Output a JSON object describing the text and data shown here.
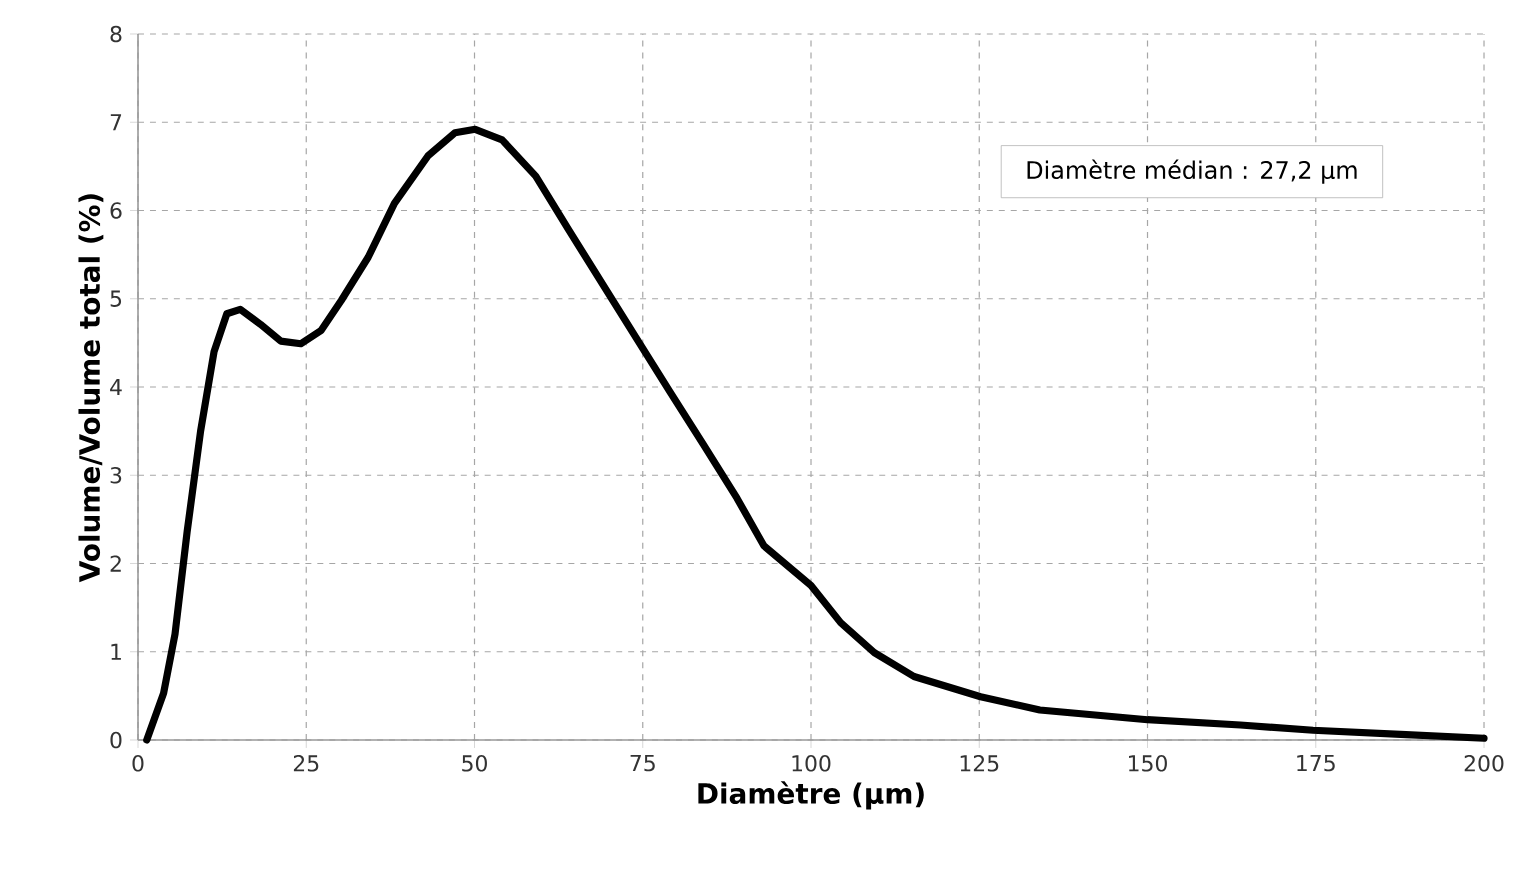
{
  "chart_data": {
    "type": "line",
    "xlabel": "Diamètre (µm)",
    "ylabel": "Volume/Volume total (%)",
    "annotations": [
      "Diamètre médian : 27,2 µm"
    ],
    "xlim": [
      0,
      200
    ],
    "ylim": [
      0,
      8
    ],
    "xticks": [
      0,
      25,
      50,
      75,
      100,
      125,
      150,
      175,
      200
    ],
    "yticks": [
      0,
      1,
      2,
      3,
      4,
      5,
      6,
      7,
      8
    ],
    "grid": true,
    "marker": "none",
    "line_style": "solid",
    "series": [
      {
        "color": "#000000",
        "x": [
          1.3,
          3.8,
          5.5,
          7.3,
          9.3,
          11.3,
          13.2,
          15.2,
          18.2,
          21.2,
          24.2,
          27.2,
          30.2,
          34.2,
          38.1,
          43.1,
          47.1,
          50.1,
          54.1,
          59.1,
          64,
          69,
          74,
          79,
          84,
          89,
          93,
          100,
          104.4,
          109.4,
          115.3,
          125.2,
          134,
          150,
          163.8,
          174.6,
          188.4,
          200
        ],
        "values": [
          0,
          0.53,
          1.2,
          2.36,
          3.5,
          4.4,
          4.83,
          4.88,
          4.71,
          4.52,
          4.49,
          4.64,
          4.98,
          5.47,
          6.08,
          6.62,
          6.88,
          6.92,
          6.8,
          6.39,
          5.78,
          5.17,
          4.56,
          3.95,
          3.35,
          2.74,
          2.2,
          1.75,
          1.33,
          0.99,
          0.72,
          0.49,
          0.34,
          0.23,
          0.17,
          0.11,
          0.06,
          0.02
        ]
      }
    ]
  }
}
